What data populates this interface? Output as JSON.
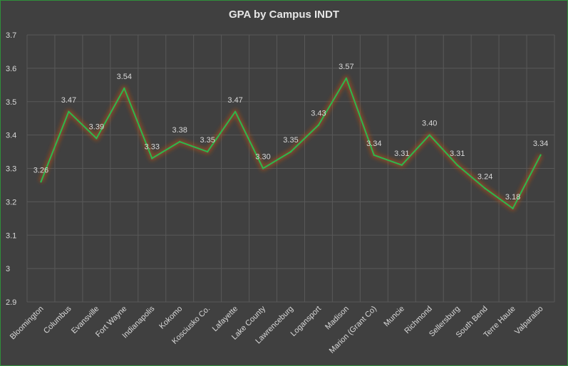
{
  "chart_data": {
    "type": "line",
    "title": "GPA by Campus INDT",
    "xlabel": "",
    "ylabel": "",
    "ylim": [
      2.9,
      3.7
    ],
    "yticks": [
      "2.9",
      "3",
      "3.1",
      "3.2",
      "3.3",
      "3.4",
      "3.5",
      "3.6",
      "3.7"
    ],
    "grid": true,
    "legend": "none",
    "categories": [
      "Bloomington",
      "Columbus",
      "Evansville",
      "Fort Wayne",
      "Indianapolis",
      "Kokomo",
      "Kosciusko Co.",
      "Lafayette",
      "Lake County",
      "Lawrenceburg",
      "Logansport",
      "Madison",
      "Marion (Grant Co)",
      "Muncie",
      "Richmond",
      "Sellersburg",
      "South Bend",
      "Terre Haute",
      "Valparaiso"
    ],
    "values": [
      3.26,
      3.47,
      3.39,
      3.54,
      3.33,
      3.38,
      3.35,
      3.47,
      3.3,
      3.35,
      3.43,
      3.57,
      3.34,
      3.31,
      3.4,
      3.31,
      3.24,
      3.18,
      3.34
    ],
    "data_labels": [
      "3.26",
      "3.47",
      "3.39",
      "3.54",
      "3.33",
      "3.38",
      "3.35",
      "3.47",
      "3.30",
      "3.35",
      "3.43",
      "3.57",
      "3.34",
      "3.31",
      "3.40",
      "3.31",
      "3.24",
      "3.18",
      "3.34"
    ],
    "colors": {
      "background": "#404040",
      "line": "#2db84d",
      "glow": "#c0501a",
      "grid": "#595959",
      "text": "#d9d9d9",
      "border": "#2f8f3a"
    }
  }
}
